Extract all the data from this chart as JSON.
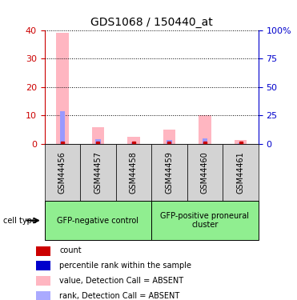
{
  "title": "GDS1068 / 150440_at",
  "samples": [
    "GSM44456",
    "GSM44457",
    "GSM44458",
    "GSM44459",
    "GSM44460",
    "GSM44461"
  ],
  "groups": [
    {
      "label": "GFP-negative control",
      "color": "#90EE90",
      "samples": [
        0,
        1,
        2
      ]
    },
    {
      "label": "GFP-positive proneural\ncluster",
      "color": "#90EE90",
      "samples": [
        3,
        4,
        5
      ]
    }
  ],
  "pink_bar_heights": [
    39,
    6,
    2.5,
    5,
    10,
    1.5
  ],
  "blue_bar_heights": [
    11.5,
    1.8,
    0.5,
    1.5,
    2.0,
    0.3
  ],
  "red_dot_y": [
    0.3,
    0.3,
    0.3,
    0.3,
    0.3,
    0.3
  ],
  "ylim_left": [
    0,
    40
  ],
  "ylim_right": [
    0,
    100
  ],
  "yticks_left": [
    0,
    10,
    20,
    30,
    40
  ],
  "yticks_right": [
    0,
    25,
    50,
    75,
    100
  ],
  "yticklabels_right": [
    "0",
    "25",
    "50",
    "75",
    "100%"
  ],
  "bar_width": 0.4,
  "pink_color": "#FFB6C1",
  "blue_color": "#9999FF",
  "red_color": "#CC0000",
  "left_tick_color": "#CC0000",
  "right_tick_color": "#0000CC",
  "grid_color": "#000000",
  "sample_bg_color": "#D3D3D3",
  "group_bg_color": "#90EE90",
  "legend_items": [
    {
      "color": "#CC0000",
      "label": "count"
    },
    {
      "color": "#0000CC",
      "label": "percentile rank within the sample"
    },
    {
      "color": "#FFB6C1",
      "label": "value, Detection Call = ABSENT"
    },
    {
      "color": "#AAAAFF",
      "label": "rank, Detection Call = ABSENT"
    }
  ]
}
